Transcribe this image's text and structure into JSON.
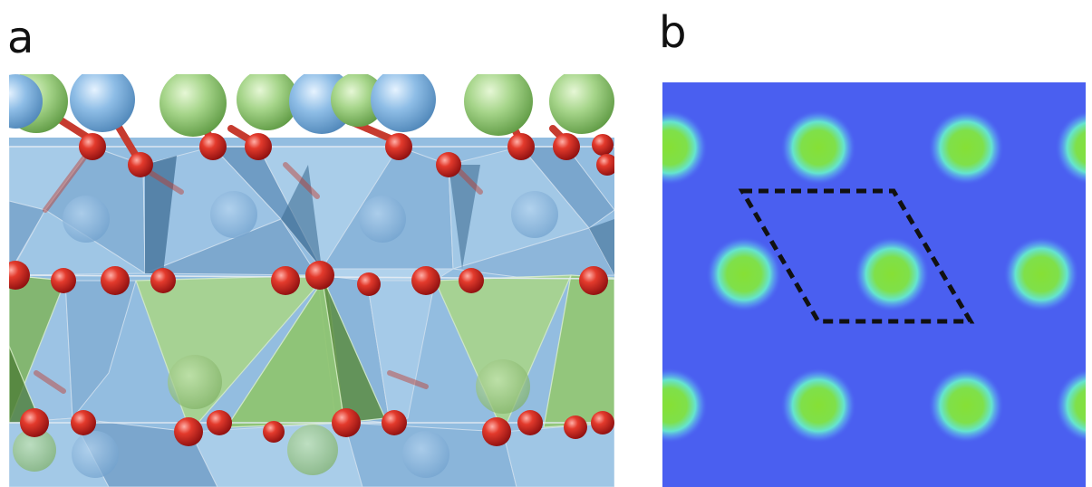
{
  "figure": {
    "panel_a": {
      "label": "a"
    },
    "panel_b": {
      "label": "b"
    }
  },
  "colors": {
    "background": "#ffffff",
    "octahedra_blue": "#8fb8dc",
    "tetrahedra_green": "#9cc982",
    "oxygen_red": "#d42020",
    "map_background": "#4a5ff0",
    "map_spot_center": "#7ee03a",
    "map_spot_halo": "#60e6e0",
    "unit_cell_dash": "#111111"
  },
  "icons": {
    "panel_a": "crystal-structure-polyhedral-side-view",
    "panel_b": "surface-density-map-with-unit-cell"
  }
}
